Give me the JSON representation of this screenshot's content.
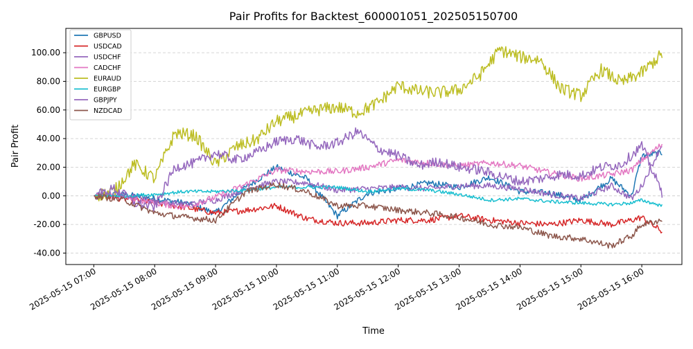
{
  "chart_data": {
    "type": "line",
    "title": "Pair Profits for Backtest_600001051_202505150700",
    "xlabel": "Time",
    "ylabel": "Pair Profit",
    "xlim_hours": [
      6.541,
      16.659
    ],
    "ylim": [
      -48,
      117
    ],
    "x_tick_labels": [
      "2025-05-15 07:00",
      "2025-05-15 08:00",
      "2025-05-15 09:00",
      "2025-05-15 10:00",
      "2025-05-15 11:00",
      "2025-05-15 12:00",
      "2025-05-15 13:00",
      "2025-05-15 14:00",
      "2025-05-15 15:00",
      "2025-05-15 16:00"
    ],
    "y_ticks": [
      -40,
      -20,
      0,
      20,
      40,
      60,
      80,
      100
    ],
    "y_tick_labels": [
      "-40.00",
      "-20.00",
      "0.00",
      "20.00",
      "40.00",
      "60.00",
      "80.00",
      "100.00"
    ],
    "grid": "horizontal dashed",
    "legend_position": "upper-left",
    "series": [
      {
        "name": "GBPUSD",
        "color": "#1f77b4",
        "x": [
          "07:00",
          "07:30",
          "08:00",
          "08:30",
          "09:00",
          "09:30",
          "10:00",
          "10:30",
          "11:00",
          "11:30",
          "12:00",
          "12:30",
          "13:00",
          "13:30",
          "14:00",
          "14:30",
          "15:00",
          "15:30",
          "15:50",
          "16:00",
          "16:20"
        ],
        "y": [
          0,
          1,
          -2,
          -5,
          -12,
          6,
          20,
          12,
          -14,
          2,
          5,
          9,
          6,
          13,
          3,
          2,
          -3,
          12,
          0,
          28,
          30
        ]
      },
      {
        "name": "USDCAD",
        "color": "#d62728",
        "x": [
          "07:00",
          "07:30",
          "08:00",
          "08:30",
          "09:00",
          "09:30",
          "10:00",
          "10:30",
          "11:00",
          "11:30",
          "12:00",
          "12:30",
          "13:00",
          "13:30",
          "14:00",
          "14:30",
          "15:00",
          "15:30",
          "15:50",
          "16:00",
          "16:20"
        ],
        "y": [
          0,
          -2,
          -5,
          -8,
          -12,
          -10,
          -7,
          -16,
          -19,
          -19,
          -17,
          -17,
          -14,
          -17,
          -19,
          -20,
          -17,
          -20,
          -17,
          -15,
          -25
        ]
      },
      {
        "name": "USDCHF",
        "color": "#9467bd",
        "x": [
          "07:00",
          "07:30",
          "08:00",
          "08:30",
          "09:00",
          "09:30",
          "10:00",
          "10:30",
          "11:00",
          "11:30",
          "12:00",
          "12:30",
          "13:00",
          "13:30",
          "14:00",
          "14:30",
          "15:00",
          "15:30",
          "15:50",
          "16:00",
          "16:20"
        ],
        "y": [
          0,
          2,
          -4,
          -6,
          -3,
          5,
          10,
          9,
          4,
          5,
          6,
          5,
          7,
          7,
          5,
          1,
          -2,
          7,
          -2,
          7,
          36
        ]
      },
      {
        "name": "CADCHF",
        "color": "#e377c2",
        "x": [
          "07:00",
          "07:30",
          "08:00",
          "08:30",
          "09:00",
          "09:30",
          "10:00",
          "10:30",
          "11:00",
          "11:30",
          "12:00",
          "12:30",
          "13:00",
          "13:30",
          "14:00",
          "14:30",
          "15:00",
          "15:30",
          "15:50",
          "16:00",
          "16:20"
        ],
        "y": [
          0,
          -1,
          -5,
          -8,
          -1,
          8,
          18,
          17,
          17,
          20,
          25,
          23,
          21,
          23,
          21,
          16,
          12,
          15,
          18,
          25,
          36
        ]
      },
      {
        "name": "EURAUD",
        "color": "#bcbd22",
        "x": [
          "07:00",
          "07:20",
          "07:40",
          "08:00",
          "08:20",
          "08:40",
          "09:00",
          "09:20",
          "09:40",
          "10:00",
          "10:20",
          "10:40",
          "11:00",
          "11:20",
          "11:40",
          "12:00",
          "12:20",
          "12:40",
          "13:00",
          "13:20",
          "13:40",
          "14:00",
          "14:20",
          "14:40",
          "15:00",
          "15:20",
          "15:40",
          "16:00",
          "16:20"
        ],
        "y": [
          0,
          3,
          22,
          12,
          44,
          42,
          22,
          34,
          39,
          52,
          56,
          60,
          62,
          58,
          65,
          77,
          73,
          72,
          74,
          84,
          102,
          97,
          95,
          75,
          70,
          88,
          79,
          86,
          99
        ]
      },
      {
        "name": "EURGBP",
        "color": "#17becf",
        "x": [
          "07:00",
          "07:30",
          "08:00",
          "08:30",
          "09:00",
          "09:30",
          "10:00",
          "10:30",
          "11:00",
          "11:30",
          "12:00",
          "12:30",
          "13:00",
          "13:30",
          "14:00",
          "14:30",
          "15:00",
          "15:30",
          "15:50",
          "16:00",
          "16:20"
        ],
        "y": [
          0,
          0,
          1,
          3,
          3,
          4,
          6,
          6,
          6,
          3,
          5,
          4,
          1,
          -3,
          -2,
          -4,
          -5,
          -6,
          -5,
          -3,
          -7
        ]
      },
      {
        "name": "GBPJPY",
        "color": "#9467bd",
        "x": [
          "07:00",
          "07:20",
          "07:40",
          "08:00",
          "08:20",
          "08:40",
          "09:00",
          "09:20",
          "09:40",
          "10:00",
          "10:20",
          "10:40",
          "11:00",
          "11:20",
          "11:40",
          "12:00",
          "12:20",
          "12:40",
          "13:00",
          "13:20",
          "13:40",
          "14:00",
          "14:20",
          "14:40",
          "15:00",
          "15:20",
          "15:40",
          "16:00",
          "16:20"
        ],
        "y": [
          0,
          5,
          -5,
          -8,
          20,
          23,
          30,
          25,
          30,
          38,
          40,
          34,
          37,
          45,
          33,
          28,
          21,
          24,
          20,
          18,
          14,
          10,
          12,
          15,
          14,
          20,
          22,
          35,
          2
        ]
      },
      {
        "name": "NZDCAD",
        "color": "#8c564b",
        "x": [
          "07:00",
          "07:30",
          "08:00",
          "08:30",
          "09:00",
          "09:30",
          "10:00",
          "10:30",
          "11:00",
          "11:30",
          "12:00",
          "12:30",
          "13:00",
          "13:30",
          "14:00",
          "14:30",
          "15:00",
          "15:30",
          "15:50",
          "16:00",
          "16:20"
        ],
        "y": [
          0,
          -3,
          -12,
          -15,
          -17,
          3,
          8,
          3,
          -7,
          -7,
          -10,
          -12,
          -15,
          -20,
          -22,
          -28,
          -30,
          -35,
          -28,
          -20,
          -17
        ]
      }
    ]
  }
}
